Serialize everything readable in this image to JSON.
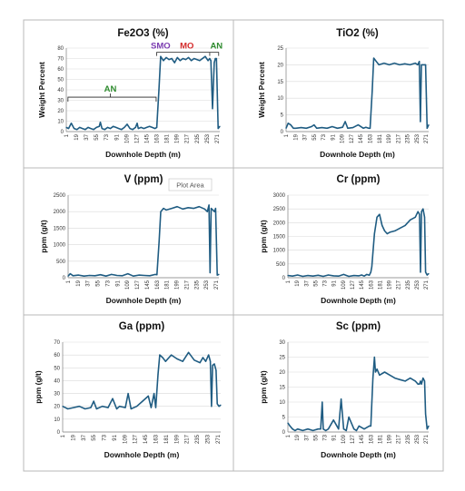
{
  "chart_data": [
    {
      "type": "line",
      "title": "Fe2O3 (%)",
      "xlabel": "Downhole Depth (m)",
      "ylabel": "Weight Percent",
      "ylim": [
        0,
        80
      ],
      "yticks": [
        0,
        10,
        20,
        30,
        40,
        50,
        60,
        70,
        80
      ],
      "xticks": [
        "1",
        "19",
        "37",
        "55",
        "73",
        "91",
        "109",
        "127",
        "145",
        "163",
        "181",
        "199",
        "217",
        "235",
        "253",
        "271"
      ],
      "xlim": [
        1,
        276
      ],
      "color": "#1f5c82",
      "annotations": [
        {
          "text": "AN",
          "color": "#2e8b2e"
        },
        {
          "text": "SMO",
          "color": "#7a3bb0"
        },
        {
          "text": "MO",
          "color": "#d42a2a"
        },
        {
          "text": "AN",
          "color": "#2e8b2e"
        }
      ],
      "series": [
        {
          "x": [
            1,
            5,
            10,
            15,
            20,
            25,
            30,
            35,
            40,
            45,
            50,
            55,
            60,
            62,
            65,
            70,
            75,
            80,
            85,
            90,
            95,
            100,
            105,
            110,
            115,
            120,
            125,
            128,
            130,
            135,
            140,
            145,
            150,
            155,
            160,
            163,
            167,
            170,
            175,
            180,
            185,
            190,
            195,
            200,
            205,
            210,
            215,
            220,
            225,
            230,
            235,
            240,
            245,
            250,
            255,
            258,
            260,
            263,
            266,
            268,
            270,
            273,
            276
          ],
          "y": [
            4,
            3,
            8,
            3,
            2,
            4,
            3,
            2,
            4,
            3,
            2,
            4,
            5,
            9,
            3,
            2,
            4,
            3,
            5,
            4,
            3,
            2,
            4,
            7,
            3,
            2,
            4,
            8,
            3,
            4,
            3,
            4,
            5,
            4,
            3,
            4,
            40,
            72,
            68,
            71,
            69,
            70,
            66,
            71,
            68,
            70,
            69,
            71,
            68,
            70,
            69,
            68,
            70,
            72,
            68,
            70,
            68,
            22,
            66,
            70,
            70,
            3,
            5
          ]
        }
      ]
    },
    {
      "type": "line",
      "title": "TiO2 (%)",
      "xlabel": "Downhole Depth (m)",
      "ylabel": "Weight Percent",
      "ylim": [
        0,
        25
      ],
      "yticks": [
        0,
        5,
        10,
        15,
        20,
        25
      ],
      "xticks": [
        "1",
        "19",
        "37",
        "55",
        "73",
        "91",
        "109",
        "127",
        "145",
        "163",
        "181",
        "199",
        "217",
        "235",
        "253",
        "271"
      ],
      "xlim": [
        1,
        276
      ],
      "color": "#1f5c82",
      "series": [
        {
          "x": [
            1,
            5,
            10,
            15,
            20,
            30,
            40,
            50,
            55,
            60,
            70,
            80,
            90,
            100,
            110,
            115,
            120,
            130,
            140,
            150,
            155,
            160,
            163,
            167,
            170,
            175,
            180,
            190,
            200,
            210,
            220,
            230,
            240,
            250,
            255,
            258,
            260,
            262,
            265,
            268,
            270,
            273,
            276
          ],
          "y": [
            1,
            2.5,
            2,
            1,
            1,
            1.2,
            1,
            1.5,
            2,
            1,
            1.2,
            1,
            1.5,
            1,
            1.3,
            3,
            1,
            1.2,
            2,
            1,
            1.3,
            1,
            1,
            12,
            22,
            21,
            20,
            20.5,
            20,
            20.5,
            20,
            20.3,
            20,
            20.5,
            20,
            21,
            3,
            20,
            20,
            20,
            20,
            1,
            2
          ]
        }
      ]
    },
    {
      "type": "line",
      "title": "V (ppm)",
      "xlabel": "Downhole Depth (m)",
      "ylabel": "ppm (g/t)",
      "ylim": [
        0,
        2500
      ],
      "yticks": [
        0,
        500,
        1000,
        1500,
        2000,
        2500
      ],
      "xticks": [
        "1",
        "19",
        "37",
        "55",
        "73",
        "91",
        "109",
        "127",
        "145",
        "163",
        "181",
        "199",
        "217",
        "235",
        "253",
        "271"
      ],
      "xlim": [
        1,
        276
      ],
      "color": "#1f5c82",
      "tooltip": "Plot Area",
      "series": [
        {
          "x": [
            1,
            5,
            10,
            20,
            30,
            40,
            50,
            60,
            70,
            80,
            90,
            100,
            110,
            120,
            130,
            140,
            150,
            160,
            163,
            167,
            170,
            175,
            180,
            190,
            200,
            210,
            220,
            230,
            240,
            250,
            255,
            258,
            260,
            262,
            265,
            268,
            270,
            273,
            276
          ],
          "y": [
            50,
            120,
            60,
            80,
            50,
            70,
            60,
            90,
            50,
            100,
            70,
            60,
            120,
            50,
            80,
            70,
            60,
            100,
            90,
            1100,
            2000,
            2100,
            2050,
            2100,
            2150,
            2080,
            2120,
            2100,
            2150,
            2080,
            2000,
            2200,
            150,
            2100,
            2050,
            2000,
            2100,
            80,
            100
          ]
        }
      ]
    },
    {
      "type": "line",
      "title": "Cr (ppm)",
      "xlabel": "Downhole Depth (m)",
      "ylabel": "ppm (g/t)",
      "ylim": [
        0,
        3000
      ],
      "yticks": [
        0,
        500,
        1000,
        1500,
        2000,
        2500,
        3000
      ],
      "xticks": [
        "1",
        "19",
        "37",
        "55",
        "73",
        "91",
        "109",
        "127",
        "145",
        "163",
        "181",
        "199",
        "217",
        "235",
        "253",
        "271"
      ],
      "xlim": [
        1,
        276
      ],
      "color": "#1f5c82",
      "series": [
        {
          "x": [
            1,
            10,
            20,
            30,
            40,
            50,
            60,
            70,
            80,
            90,
            100,
            110,
            120,
            130,
            140,
            145,
            150,
            155,
            160,
            163,
            165,
            167,
            170,
            175,
            180,
            185,
            190,
            195,
            200,
            210,
            220,
            230,
            240,
            250,
            255,
            258,
            260,
            262,
            265,
            268,
            270,
            273,
            276
          ],
          "y": [
            80,
            60,
            100,
            50,
            80,
            60,
            90,
            50,
            100,
            70,
            60,
            120,
            50,
            80,
            70,
            100,
            60,
            120,
            90,
            200,
            400,
            900,
            1600,
            2200,
            2300,
            1900,
            1700,
            1600,
            1650,
            1700,
            1800,
            1900,
            2100,
            2200,
            2400,
            2300,
            200,
            2400,
            2500,
            2200,
            200,
            100,
            150
          ]
        }
      ]
    },
    {
      "type": "line",
      "title": "Ga (ppm)",
      "xlabel": "Downhole Depth (m)",
      "ylabel": "ppm (g/t)",
      "ylim": [
        0,
        70
      ],
      "yticks": [
        0,
        10,
        20,
        30,
        40,
        50,
        60,
        70
      ],
      "xticks": [
        "1",
        "19",
        "37",
        "55",
        "73",
        "91",
        "109",
        "127",
        "145",
        "163",
        "181",
        "199",
        "217",
        "235",
        "253",
        "271"
      ],
      "xlim": [
        1,
        276
      ],
      "color": "#1f5c82",
      "series": [
        {
          "x": [
            1,
            10,
            20,
            30,
            40,
            50,
            55,
            60,
            70,
            80,
            88,
            95,
            100,
            110,
            115,
            120,
            130,
            140,
            150,
            155,
            160,
            163,
            167,
            170,
            175,
            180,
            190,
            200,
            210,
            220,
            230,
            240,
            245,
            250,
            255,
            258,
            260,
            262,
            265,
            268,
            270,
            273,
            276
          ],
          "y": [
            20,
            18,
            19,
            20,
            18,
            19,
            24,
            18,
            20,
            19,
            26,
            18,
            20,
            19,
            30,
            18,
            20,
            24,
            28,
            19,
            30,
            19,
            45,
            60,
            58,
            55,
            60,
            57,
            55,
            62,
            56,
            54,
            58,
            55,
            60,
            55,
            20,
            52,
            53,
            48,
            22,
            20,
            21
          ]
        }
      ]
    },
    {
      "type": "line",
      "title": "Sc (ppm)",
      "xlabel": "Downhole Depth (m)",
      "ylabel": "ppm (g/t)",
      "ylim": [
        0,
        30
      ],
      "yticks": [
        0,
        5,
        10,
        15,
        20,
        25,
        30
      ],
      "xticks": [
        "1",
        "19",
        "37",
        "55",
        "73",
        "91",
        "109",
        "127",
        "145",
        "163",
        "181",
        "199",
        "217",
        "235",
        "253",
        "271"
      ],
      "xlim": [
        1,
        276
      ],
      "color": "#1f5c82",
      "series": [
        {
          "x": [
            1,
            5,
            10,
            15,
            20,
            30,
            40,
            50,
            60,
            65,
            68,
            70,
            75,
            80,
            90,
            100,
            105,
            110,
            115,
            120,
            130,
            135,
            140,
            150,
            160,
            163,
            167,
            170,
            172,
            175,
            180,
            190,
            200,
            210,
            220,
            230,
            240,
            250,
            255,
            258,
            260,
            262,
            265,
            268,
            270,
            273,
            276
          ],
          "y": [
            3,
            2,
            1,
            0.5,
            1,
            0.5,
            1,
            0.5,
            1,
            1,
            10,
            1,
            0.5,
            1,
            4,
            1,
            11,
            1,
            0.5,
            5,
            1,
            0.5,
            2,
            1,
            2,
            2,
            18,
            25,
            20,
            21,
            19,
            20,
            19,
            18,
            17.5,
            17,
            18,
            17,
            16,
            16,
            17,
            16,
            18,
            17,
            6,
            1,
            2
          ]
        }
      ]
    }
  ]
}
